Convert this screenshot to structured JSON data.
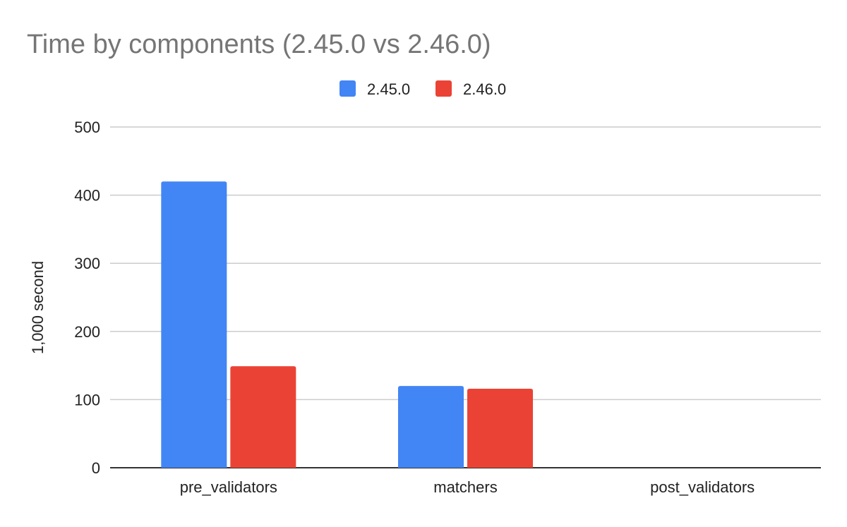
{
  "chart_data": {
    "type": "bar",
    "title": "Time by components (2.45.0 vs 2.46.0)",
    "xlabel": "",
    "ylabel": "1,000 second",
    "categories": [
      "pre_validators",
      "matchers",
      "post_validators"
    ],
    "series": [
      {
        "name": "2.45.0",
        "color": "#4285F4",
        "values": [
          420,
          120,
          0
        ]
      },
      {
        "name": "2.46.0",
        "color": "#EA4335",
        "values": [
          149,
          116,
          0
        ]
      }
    ],
    "ylim": [
      0,
      500
    ],
    "yticks": [
      0,
      100,
      200,
      300,
      400,
      500
    ],
    "grid": true,
    "legend_position": "top-center"
  }
}
